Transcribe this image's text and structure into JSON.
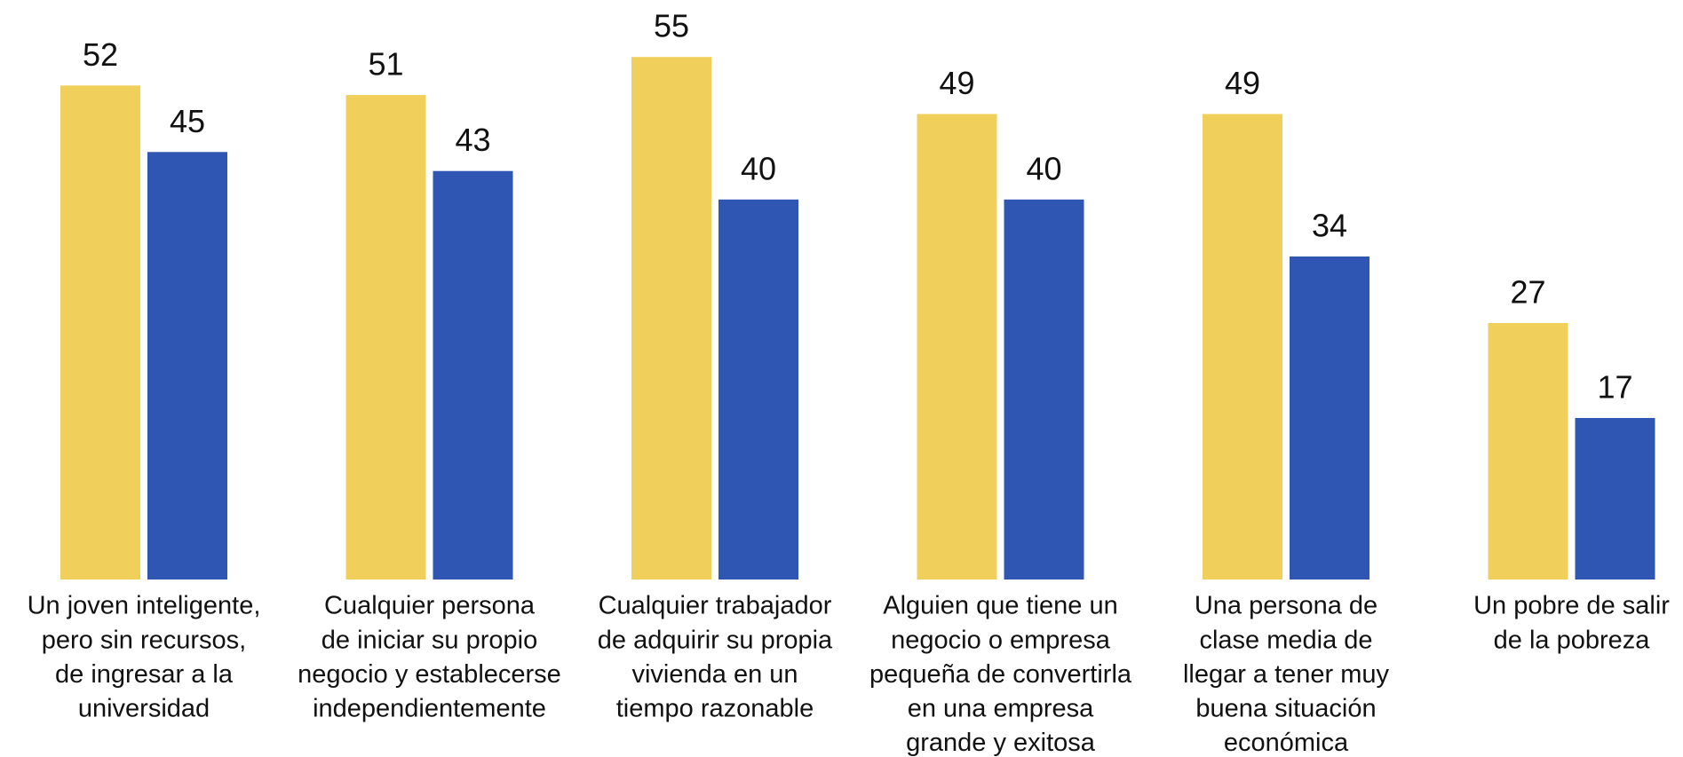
{
  "chart_data": {
    "type": "bar",
    "categories": [
      [
        "Un joven inteligente,",
        "pero sin recursos,",
        "de ingresar a la",
        "universidad"
      ],
      [
        "Cualquier persona",
        "de iniciar su propio",
        "negocio y establecerse",
        "independientemente"
      ],
      [
        "Cualquier trabajador",
        "de adquirir su propia",
        "vivienda en un",
        "tiempo razonable"
      ],
      [
        "Alguien que tiene un",
        "negocio o empresa",
        "pequeña de convertirla",
        "en una empresa",
        "grande y exitosa"
      ],
      [
        "Una persona de",
        "clase media de",
        "llegar a tener muy",
        "buena situación",
        "económica"
      ],
      [
        "Un pobre de salir",
        "de la pobreza"
      ]
    ],
    "series": [
      {
        "color": "#f0cf5a",
        "values": [
          52,
          51,
          55,
          49,
          49,
          27
        ]
      },
      {
        "color": "#2f56b2",
        "values": [
          45,
          43,
          40,
          40,
          34,
          17
        ]
      }
    ],
    "ylim": [
      0,
      61
    ]
  }
}
